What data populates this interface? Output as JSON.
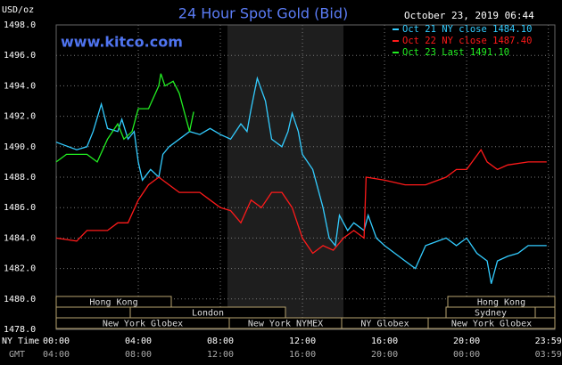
{
  "chart_data": {
    "type": "line",
    "title": "24 Hour Spot Gold (Bid)",
    "watermark": "www.kitco.com",
    "y_label": "USD/oz",
    "timestamp": "October 23, 2019 06:44",
    "x_row_label": "NY Time",
    "gmt_row_label": "GMT",
    "xlim": [
      0,
      24.3
    ],
    "ylim": [
      1478,
      1498
    ],
    "grid": true,
    "yticks": [
      {
        "value": 1478,
        "label": "1478.0"
      },
      {
        "value": 1480,
        "label": "1480.0"
      },
      {
        "value": 1482,
        "label": "1482.0"
      },
      {
        "value": 1484,
        "label": "1484.0"
      },
      {
        "value": 1486,
        "label": "1486.0"
      },
      {
        "value": 1488,
        "label": "1488.0"
      },
      {
        "value": 1490,
        "label": "1490.0"
      },
      {
        "value": 1492,
        "label": "1492.0"
      },
      {
        "value": 1494,
        "label": "1494.0"
      },
      {
        "value": 1496,
        "label": "1496.0"
      },
      {
        "value": 1498,
        "label": "1498.0"
      }
    ],
    "xticks": [
      {
        "value": 0,
        "label": "00:00"
      },
      {
        "value": 4,
        "label": "04:00"
      },
      {
        "value": 8,
        "label": "08:00"
      },
      {
        "value": 12,
        "label": "12:00"
      },
      {
        "value": 16,
        "label": "16:00"
      },
      {
        "value": 20,
        "label": "20:00"
      },
      {
        "value": 23.983,
        "label": "23:59"
      }
    ],
    "gmt_labels": [
      "04:00",
      "08:00",
      "12:00",
      "16:00",
      "20:00",
      "00:00",
      "03:59"
    ],
    "sessions": [
      "Hong Kong",
      "Hong Kong",
      "London",
      "Sydney",
      "New York Globex",
      "New York NYMEX",
      "NY Globex",
      "New York Globex"
    ],
    "series": [
      {
        "name": "Oct 21 NY close 1484.10",
        "color": "#33ccff",
        "x": [
          0,
          1,
          1.5,
          1.8,
          2.2,
          2.5,
          3,
          3.2,
          3.5,
          3.8,
          4,
          4.2,
          4.6,
          5,
          5.2,
          5.5,
          6,
          6.5,
          7,
          7.5,
          8,
          8.5,
          9,
          9.3,
          9.5,
          9.8,
          10.2,
          10.5,
          11,
          11.3,
          11.5,
          11.8,
          12,
          12.5,
          13,
          13.3,
          13.6,
          13.8,
          14.2,
          14.5,
          15,
          15.2,
          15.6,
          16,
          16.5,
          17,
          17.5,
          18,
          19,
          19.5,
          20,
          20.5,
          21,
          21.2,
          21.5,
          22,
          22.5,
          23,
          23.9
        ],
        "values": [
          1490.3,
          1489.8,
          1490,
          1491,
          1492.8,
          1491.2,
          1491,
          1491.8,
          1490.5,
          1491,
          1489,
          1487.8,
          1488.5,
          1488,
          1489.5,
          1490,
          1490.5,
          1491,
          1490.8,
          1491.2,
          1490.8,
          1490.5,
          1491.5,
          1491,
          1492.5,
          1494.5,
          1493,
          1490.5,
          1490,
          1491,
          1492.2,
          1491,
          1489.5,
          1488.5,
          1486,
          1484,
          1483.5,
          1485.5,
          1484.5,
          1485,
          1484.5,
          1485.5,
          1484,
          1483.5,
          1483,
          1482.5,
          1482,
          1483.5,
          1484,
          1483.5,
          1484,
          1483,
          1482.5,
          1481,
          1482.5,
          1482.8,
          1483,
          1483.5,
          1483.5
        ]
      },
      {
        "name": "Oct 22 NY close 1487.40",
        "color": "#ff1a1a",
        "x": [
          0,
          1,
          1.5,
          2.5,
          3,
          3.5,
          4,
          4.5,
          5,
          5.5,
          6,
          6.5,
          7,
          7.5,
          8,
          8.5,
          9,
          9.5,
          10,
          10.5,
          11,
          11.5,
          12,
          12.5,
          13,
          13.5,
          14,
          14.5,
          15,
          15.1,
          16,
          17,
          18,
          19,
          19.5,
          20,
          20.7,
          21,
          21.5,
          22,
          23,
          23.9
        ],
        "values": [
          1484,
          1483.8,
          1484.5,
          1484.5,
          1485,
          1485,
          1486.5,
          1487.5,
          1488,
          1487.5,
          1487,
          1487,
          1487,
          1486.5,
          1486,
          1485.8,
          1485,
          1486.5,
          1486,
          1487,
          1487,
          1486,
          1484,
          1483,
          1483.5,
          1483.2,
          1484,
          1484.5,
          1484,
          1488,
          1487.8,
          1487.5,
          1487.5,
          1488,
          1488.5,
          1488.5,
          1489.8,
          1489,
          1488.5,
          1488.8,
          1489,
          1489
        ]
      },
      {
        "name": "Oct 23 Last 1491.10",
        "color": "#22ee22",
        "x": [
          0,
          0.5,
          1,
          1.5,
          2,
          2.5,
          3,
          3.3,
          3.7,
          4,
          4.5,
          5,
          5.1,
          5.3,
          5.7,
          6,
          6.3,
          6.5,
          6.7
        ],
        "values": [
          1489,
          1489.5,
          1489.5,
          1489.5,
          1489,
          1490.5,
          1491.5,
          1490.5,
          1491,
          1492.5,
          1492.5,
          1494,
          1494.8,
          1494,
          1494.3,
          1493.5,
          1492,
          1491,
          1492.3
        ]
      }
    ]
  }
}
